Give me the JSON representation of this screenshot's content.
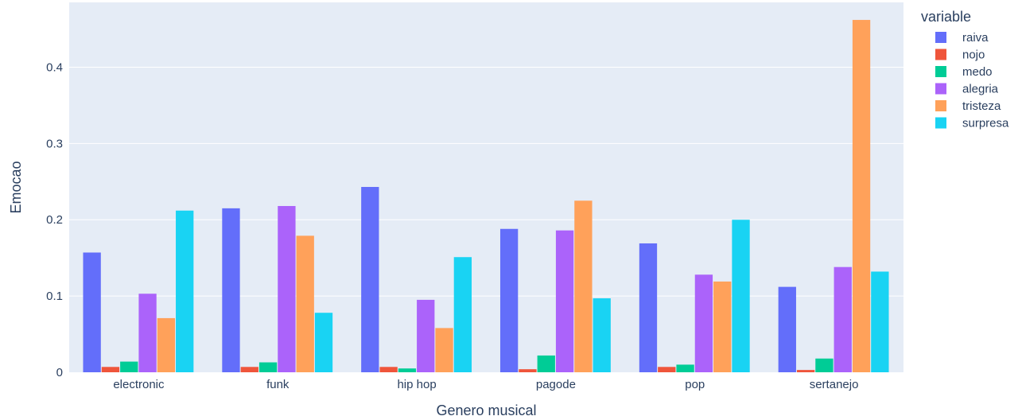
{
  "chart_data": {
    "type": "bar",
    "categories": [
      "electronic",
      "funk",
      "hip hop",
      "pagode",
      "pop",
      "sertanejo"
    ],
    "series": [
      {
        "name": "raiva",
        "color": "#636efa",
        "values": [
          0.157,
          0.215,
          0.243,
          0.188,
          0.169,
          0.112
        ]
      },
      {
        "name": "nojo",
        "color": "#EF553B",
        "values": [
          0.007,
          0.007,
          0.007,
          0.004,
          0.007,
          0.003
        ]
      },
      {
        "name": "medo",
        "color": "#00cc96",
        "values": [
          0.014,
          0.013,
          0.005,
          0.022,
          0.01,
          0.018
        ]
      },
      {
        "name": "alegria",
        "color": "#ab63fa",
        "values": [
          0.103,
          0.218,
          0.095,
          0.186,
          0.128,
          0.138
        ]
      },
      {
        "name": "tristeza",
        "color": "#FFA15A",
        "values": [
          0.071,
          0.179,
          0.058,
          0.225,
          0.119,
          0.462
        ]
      },
      {
        "name": "surpresa",
        "color": "#19d3f3",
        "values": [
          0.212,
          0.078,
          0.151,
          0.097,
          0.2,
          0.132
        ]
      }
    ],
    "xlabel": "Genero musical",
    "ylabel": "Emocao",
    "ylim": [
      0,
      0.485
    ],
    "yticks": [
      0,
      0.1,
      0.2,
      0.3,
      0.4
    ],
    "ytick_labels": [
      "0",
      "0.1",
      "0.2",
      "0.3",
      "0.4"
    ],
    "legend_title": "variable",
    "legend_position": "right",
    "grid": true,
    "plot_background": "#E5ECF6"
  }
}
